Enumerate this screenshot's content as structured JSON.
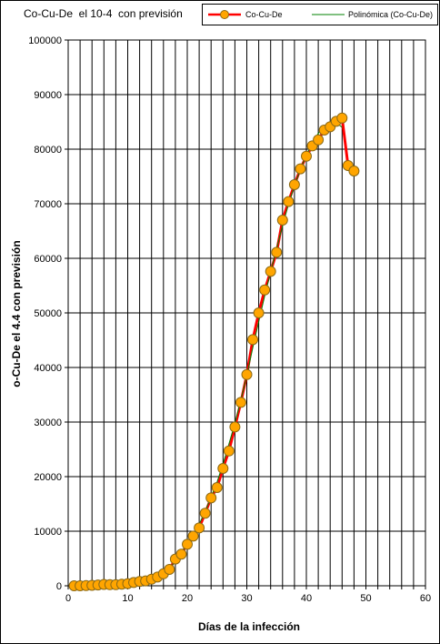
{
  "chart_data": {
    "type": "line",
    "title": "Co-Cu-De  el 10-4  con previsión",
    "xlabel": "Días de la infección",
    "ylabel": "o-Cu-De el 4.4 con previsión",
    "xlim": [
      0,
      60
    ],
    "ylim": [
      0,
      100000
    ],
    "x_ticks": [
      0,
      10,
      20,
      30,
      40,
      50,
      60
    ],
    "y_ticks": [
      0,
      10000,
      20000,
      30000,
      40000,
      50000,
      60000,
      70000,
      80000,
      90000,
      100000
    ],
    "grid": "vertical every 2 units, horizontal every 10000",
    "legend_position": "top-right",
    "colors": {
      "series_line": "#ff0000",
      "marker_fill": "#ffa500",
      "marker_edge": "#8b6914",
      "trend_line": "#008000"
    },
    "series": [
      {
        "name": "Co-Cu-De",
        "x": [
          1,
          2,
          3,
          4,
          5,
          6,
          7,
          8,
          9,
          10,
          11,
          12,
          13,
          14,
          15,
          16,
          17,
          18,
          19,
          20,
          21,
          22,
          23,
          24,
          25,
          26,
          27,
          28,
          29,
          30,
          31,
          32,
          33,
          34,
          35,
          36,
          37,
          38,
          39,
          40,
          41,
          42,
          43,
          44,
          45,
          46,
          47,
          48
        ],
        "values": [
          0,
          0,
          50,
          80,
          150,
          250,
          200,
          200,
          300,
          400,
          600,
          800,
          900,
          1200,
          1600,
          2200,
          3000,
          4900,
          5800,
          7600,
          9100,
          10600,
          13300,
          16100,
          18000,
          21500,
          24700,
          29100,
          33600,
          38700,
          45100,
          50000,
          54200,
          57600,
          61100,
          67000,
          70400,
          73500,
          76400,
          78700,
          80600,
          81700,
          83500,
          84100,
          85100,
          85700,
          77000,
          76000
        ]
      },
      {
        "name": "Polinómica (Co-Cu-De)",
        "x": [
          1,
          2,
          3,
          4,
          5,
          6,
          7,
          8,
          9,
          10,
          11,
          12,
          13,
          14,
          15,
          16,
          17,
          18,
          19,
          20,
          21,
          22,
          23,
          24,
          25,
          26,
          27,
          28,
          29,
          30,
          31,
          32,
          33,
          34,
          35,
          36,
          37,
          38,
          39,
          40,
          41,
          42,
          43,
          44,
          45,
          46
        ],
        "values": [
          0,
          20,
          60,
          100,
          160,
          220,
          260,
          300,
          380,
          480,
          620,
          800,
          1000,
          1300,
          1700,
          2300,
          3200,
          4400,
          6000,
          7700,
          9500,
          11300,
          13600,
          16300,
          19000,
          22300,
          26000,
          29800,
          34000,
          38600,
          43600,
          48400,
          53100,
          57500,
          61800,
          66000,
          69900,
          73300,
          76300,
          78900,
          81100,
          82900,
          84200,
          84900,
          84900,
          84000
        ]
      }
    ]
  }
}
